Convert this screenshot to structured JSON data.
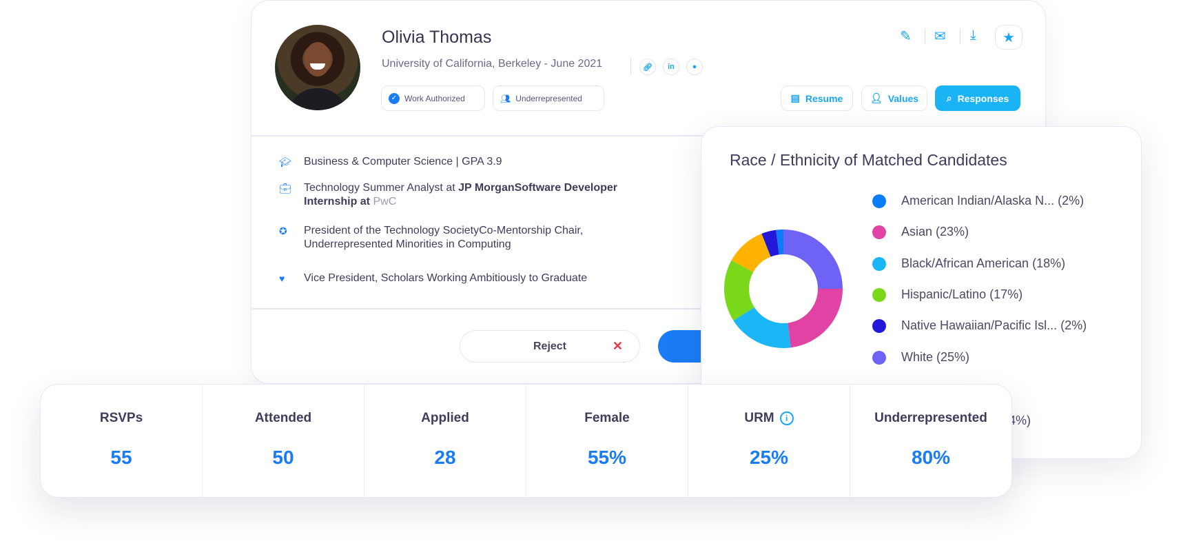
{
  "profile": {
    "name": "Olivia Thomas",
    "education": "University of California, Berkeley - June 2021",
    "badges": [
      "Work Authorized",
      "Underrepresented"
    ],
    "tabs": [
      "Resume",
      "Values",
      "Responses"
    ],
    "details": {
      "major": "Business & Computer Science | GPA 3.9",
      "exp_a": "Technology Summer Analyst at ",
      "exp_b": "JP MorganSoftware Developer Internship at",
      "exp_c": " PwC",
      "leadership": "President of the Technology SocietyCo-Mentorship Chair, Underrepresented Minorities in Computing",
      "org": "Vice President, Scholars Working Ambitiously to Graduate"
    },
    "reject_label": "Reject",
    "link_icons": [
      "link-icon",
      "linkedin-icon",
      "github-icon"
    ]
  },
  "chart_data": {
    "type": "pie",
    "title": "Race / Ethnicity of Matched Candidates",
    "legend": [
      {
        "label": "American Indian/Alaska N... (2%)",
        "value": 2,
        "color": "#0a7cf7"
      },
      {
        "label": "Asian (23%)",
        "value": 23,
        "color": "#e043a3"
      },
      {
        "label": "Black/African American (18%)",
        "value": 18,
        "color": "#1ab6f6"
      },
      {
        "label": "Hispanic/Latino (17%)",
        "value": 17,
        "color": "#79d81a"
      },
      {
        "label": "Native Hawaiian/Pacific Isl... (2%)",
        "value": 2,
        "color": "#2418d8"
      },
      {
        "label": "White (25%)",
        "value": 25,
        "color": "#6f63f5"
      },
      {
        "label": "(4%)",
        "value": 4,
        "color": "#2418d8"
      }
    ],
    "slices": [
      {
        "value": 25,
        "color": "#6f63f5"
      },
      {
        "value": 23,
        "color": "#e043a3"
      },
      {
        "value": 18,
        "color": "#1ab6f6"
      },
      {
        "value": 17,
        "color": "#79d81a"
      },
      {
        "value": 11,
        "color": "#ffb300"
      },
      {
        "value": 4,
        "color": "#2418d8"
      },
      {
        "value": 2,
        "color": "#0a7cf7"
      }
    ]
  },
  "stats": [
    {
      "label": "RSVPs",
      "value": "55"
    },
    {
      "label": "Attended",
      "value": "50"
    },
    {
      "label": "Applied",
      "value": "28"
    },
    {
      "label": "Female",
      "value": "55%"
    },
    {
      "label": "URM",
      "value": "25%"
    },
    {
      "label": "Underrepresented",
      "value": "80%"
    }
  ]
}
